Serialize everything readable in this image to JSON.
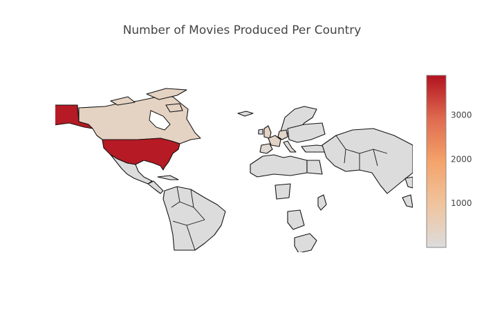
{
  "title": "Number of Movies Produced Per Country",
  "map": {
    "projection": "mercator",
    "no_data_color": "#dcdcdc",
    "border_color": "#111111",
    "countries": [
      {
        "name": "United States",
        "movies": 3807
      },
      {
        "name": "Canada",
        "movies": 410
      },
      {
        "name": "United Kingdom",
        "movies": 420
      },
      {
        "name": "France",
        "movies": 350
      },
      {
        "name": "Germany",
        "movies": 300
      },
      {
        "name": "Spain",
        "movies": 150
      },
      {
        "name": "Italy",
        "movies": 100
      }
    ]
  },
  "colorbar": {
    "min": 0,
    "max": 3900,
    "ticks": [
      1000,
      2000,
      3000
    ],
    "colorscale": [
      "#dcdcdc",
      "#f0c49e",
      "#f4a36a",
      "#df6a4f",
      "#b2121f"
    ]
  }
}
